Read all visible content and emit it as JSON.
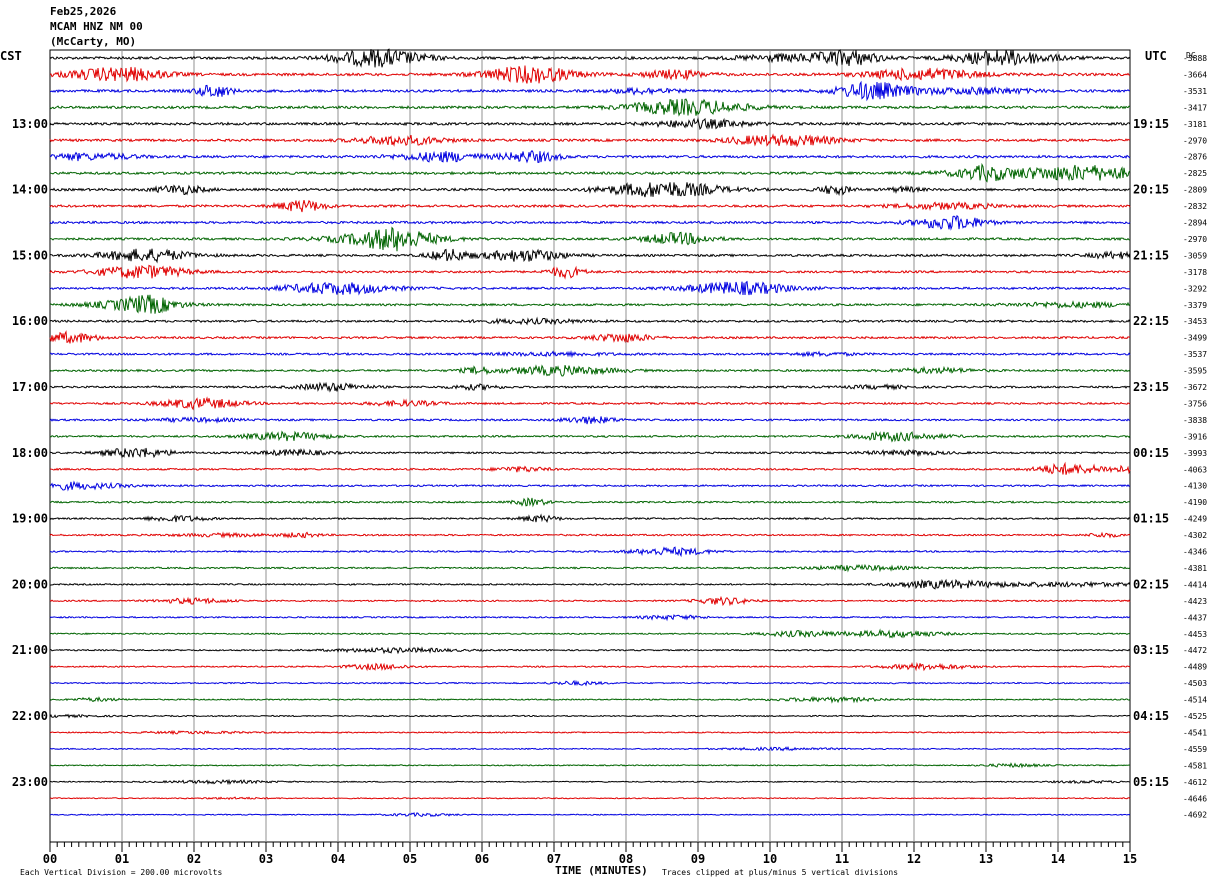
{
  "header": {
    "date": "Feb25,2026",
    "station": "MCAM HNZ NM 00",
    "location": "(McCarty, MO)"
  },
  "chart_data": {
    "type": "line",
    "title": "Feb25,2026 MCAM HNZ NM 00 (McCarty, MO)",
    "left_timezone": "CST",
    "right_timezone": "UTC",
    "dc_label": "DC",
    "xlabel": "TIME (MINUTES)",
    "xlim": [
      0,
      15
    ],
    "x_ticks": [
      "00",
      "01",
      "02",
      "03",
      "04",
      "05",
      "06",
      "07",
      "08",
      "09",
      "10",
      "11",
      "12",
      "13",
      "14",
      "15"
    ],
    "left_hour_labels": [
      "13:00",
      "14:00",
      "15:00",
      "16:00",
      "17:00",
      "18:00",
      "19:00",
      "20:00",
      "21:00",
      "22:00",
      "23:00"
    ],
    "right_hour_labels": [
      "19:15",
      "20:15",
      "21:15",
      "22:15",
      "23:15",
      "00:15",
      "01:15",
      "02:15",
      "03:15",
      "04:15",
      "05:15"
    ],
    "dc_offsets": [
      "-3888",
      "-3664",
      "-3531",
      "-3417",
      "-3181",
      "-2970",
      "-2876",
      "-2825",
      "-2809",
      "-2832",
      "-2894",
      "-2970",
      "-3059",
      "-3178",
      "-3292",
      "-3379",
      "-3453",
      "-3499",
      "-3537",
      "-3595",
      "-3672",
      "-3756",
      "-3838",
      "-3916",
      "-3993",
      "-4063",
      "-4130",
      "-4190",
      "-4249",
      "-4302",
      "-4346",
      "-4381",
      "-4414",
      "-4423",
      "-4437",
      "-4453",
      "-4472",
      "-4489",
      "-4503",
      "-4514",
      "-4525",
      "-4541",
      "-4559",
      "-4581",
      "-4612",
      "-4646",
      "-4692"
    ],
    "trace_colors": [
      "#000000",
      "#e00000",
      "#0000e0",
      "#006400"
    ],
    "trace_count": 47,
    "scale_note": "Each Vertical Division =  200.00 microvolts",
    "clip_note": "Traces clipped at plus/minus 5 vertical divisions",
    "grid": true
  }
}
